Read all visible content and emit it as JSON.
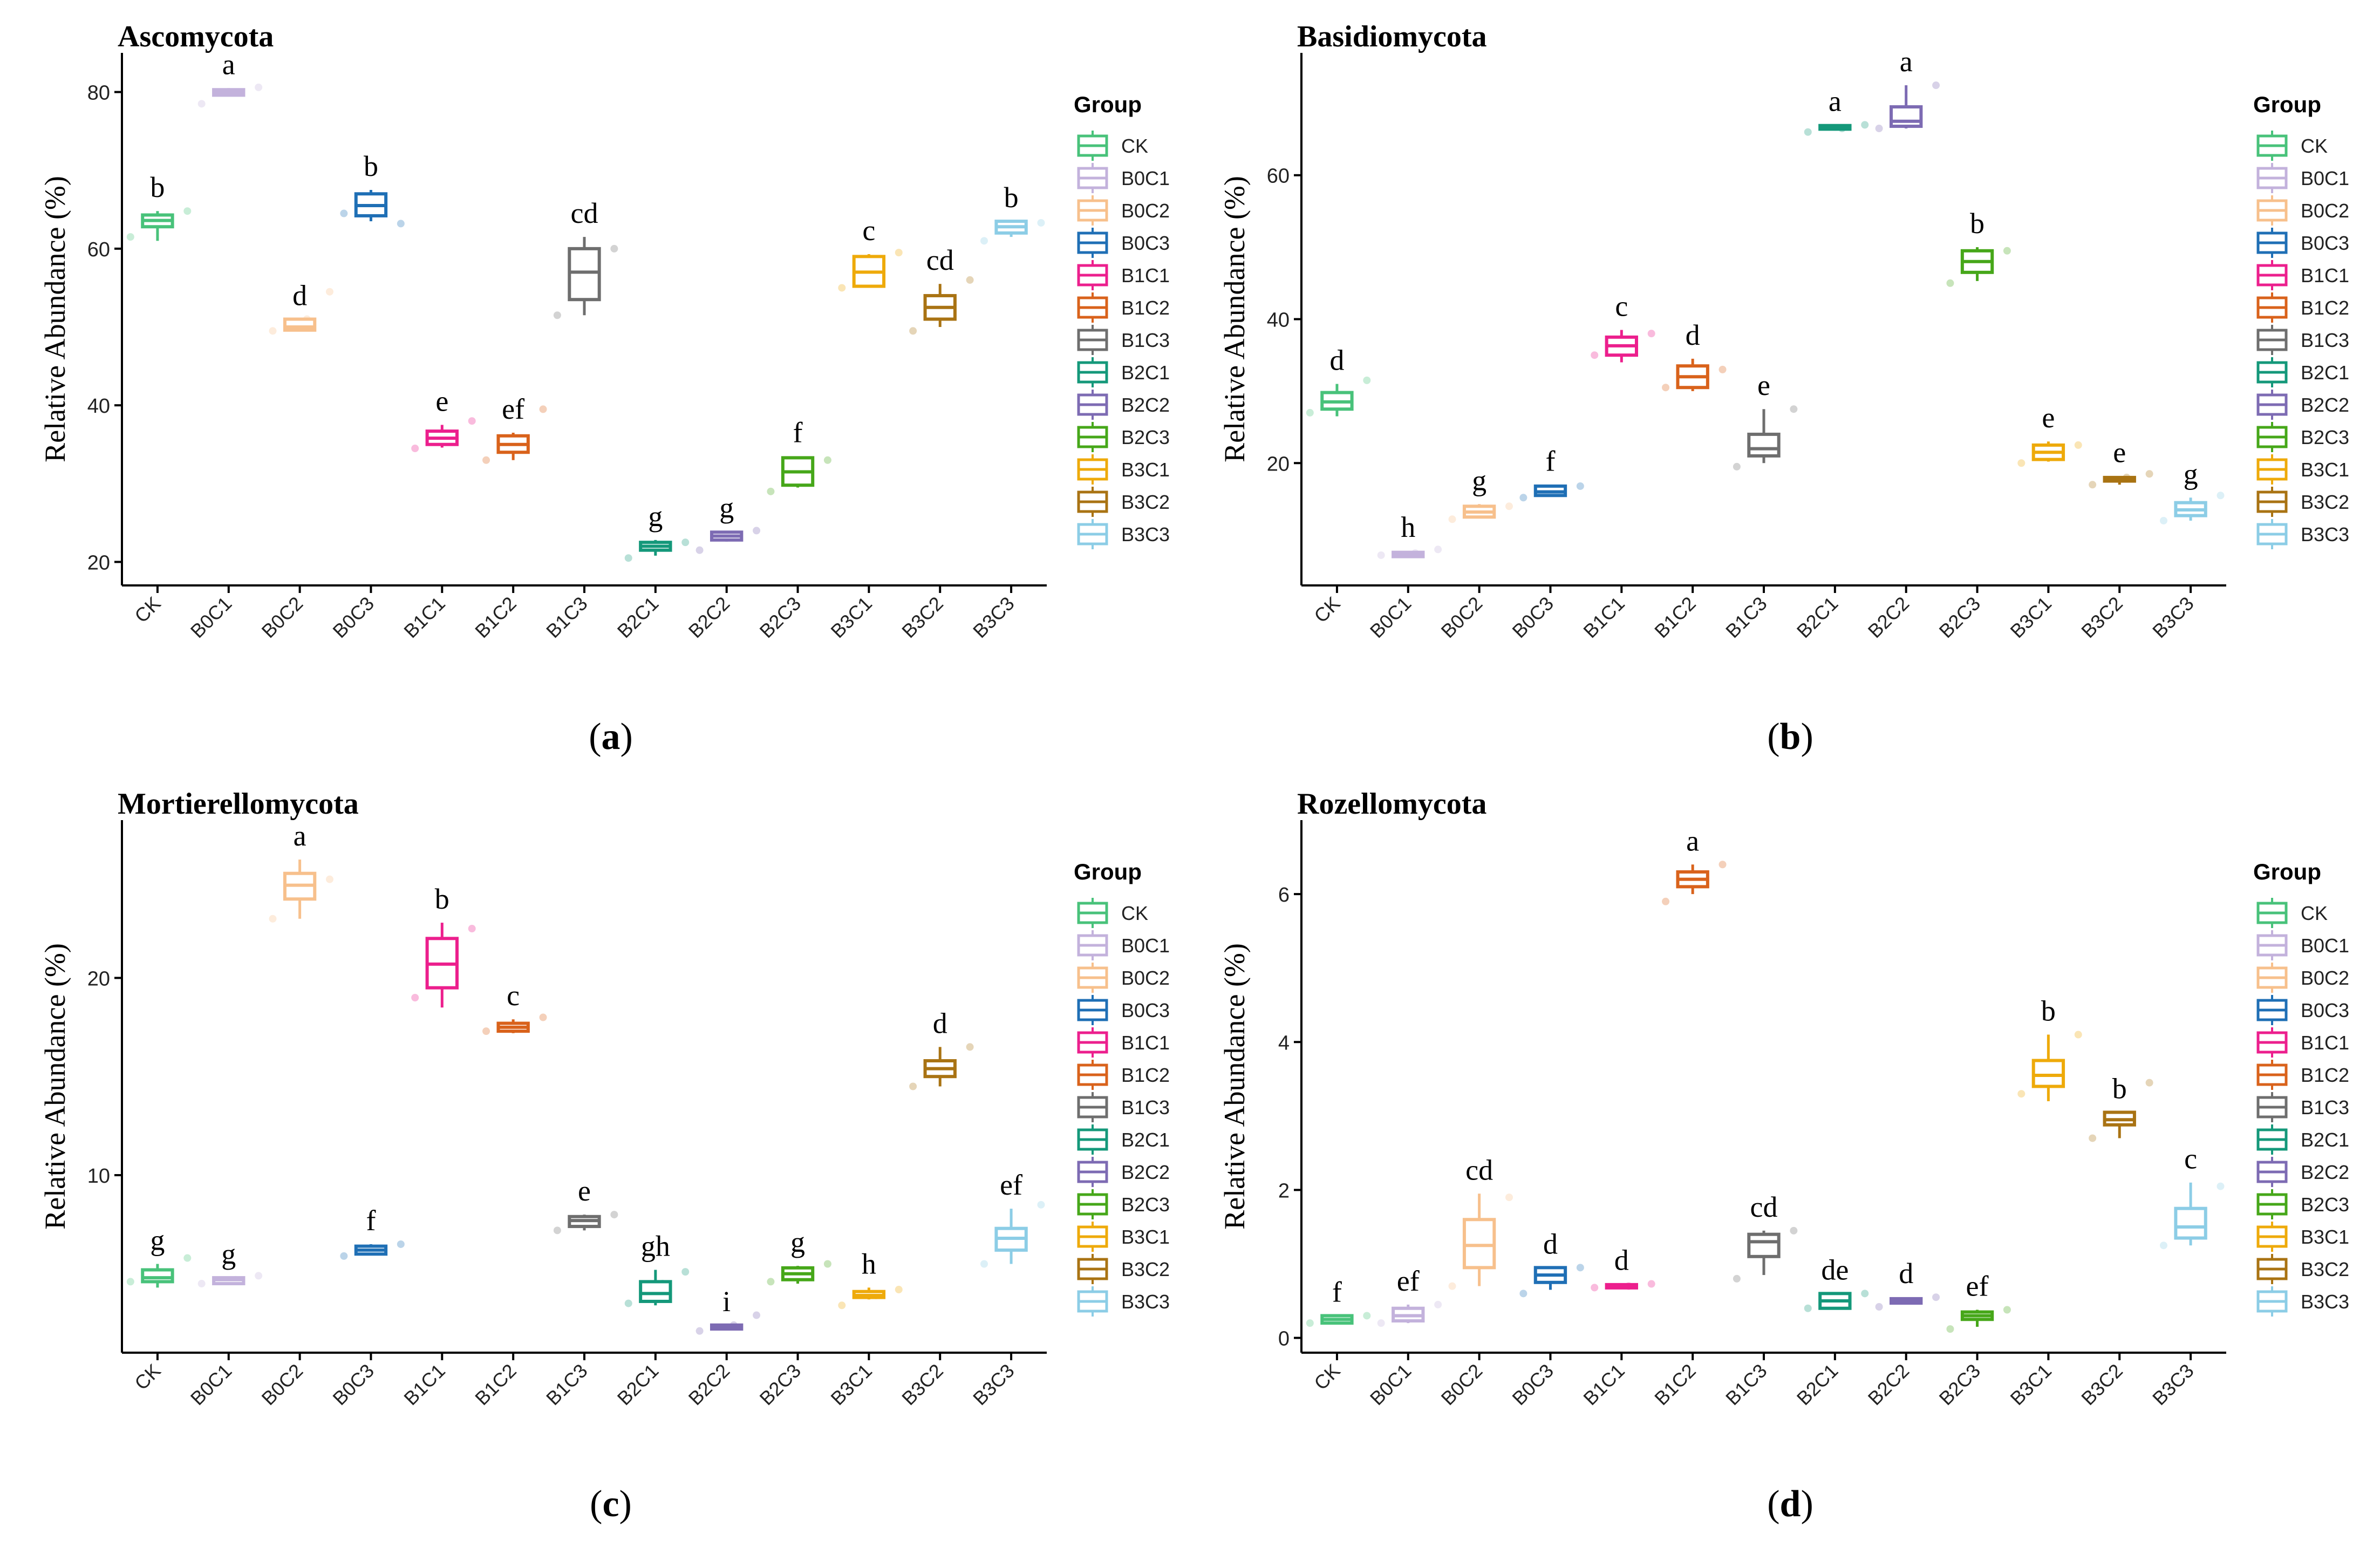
{
  "figure": {
    "panel_letters": [
      "(a)",
      "(b)",
      "(c)",
      "(d)"
    ]
  },
  "legend": {
    "title": "Group",
    "groups": [
      "CK",
      "B0C1",
      "B0C2",
      "B0C3",
      "B1C1",
      "B1C2",
      "B1C3",
      "B2C1",
      "B2C2",
      "B2C3",
      "B3C1",
      "B3C2",
      "B3C3"
    ],
    "colors": [
      "#48C27A",
      "#C3B2DC",
      "#F7C08C",
      "#1F6FB5",
      "#EC1F8D",
      "#D9621B",
      "#6E6E6E",
      "#14987A",
      "#7D6BB3",
      "#46A719",
      "#EEAA0A",
      "#A97313",
      "#8CCDE6"
    ]
  },
  "chart_data": [
    {
      "type": "box",
      "title": "Ascomycota",
      "panel": "(a)",
      "xlabel": "",
      "ylabel": "Relative Abundance (%)",
      "categories": [
        "CK",
        "B0C1",
        "B0C2",
        "B0C3",
        "B1C1",
        "B1C2",
        "B1C3",
        "B2C1",
        "B2C2",
        "B2C3",
        "B3C1",
        "B3C2",
        "B3C3"
      ],
      "yticks": [
        20,
        40,
        60,
        80
      ],
      "ylim": [
        17,
        85
      ],
      "boxes": [
        {
          "min": 61,
          "q1": 62.8,
          "median": 63.6,
          "q3": 64.3,
          "max": 64.8
        },
        {
          "min": 79.5,
          "q1": 79.6,
          "median": 80,
          "q3": 80.3,
          "max": 80.5
        },
        {
          "min": 49.5,
          "q1": 49.6,
          "median": 50,
          "q3": 51,
          "max": 51
        },
        {
          "min": 63.5,
          "q1": 64.2,
          "median": 65.5,
          "q3": 67,
          "max": 67.5
        },
        {
          "min": 34.6,
          "q1": 35,
          "median": 35.8,
          "q3": 36.7,
          "max": 37.5
        },
        {
          "min": 33,
          "q1": 34,
          "median": 35,
          "q3": 36.1,
          "max": 36.5
        },
        {
          "min": 51.5,
          "q1": 53.5,
          "median": 57,
          "q3": 60,
          "max": 61.5
        },
        {
          "min": 20.8,
          "q1": 21.5,
          "median": 22,
          "q3": 22.5,
          "max": 22.8
        },
        {
          "min": 22.6,
          "q1": 22.8,
          "median": 23.3,
          "q3": 23.8,
          "max": 23.9
        },
        {
          "min": 29.5,
          "q1": 29.8,
          "median": 31.5,
          "q3": 33.3,
          "max": 33.5
        },
        {
          "min": 55,
          "q1": 55.2,
          "median": 57,
          "q3": 59,
          "max": 59.3
        },
        {
          "min": 50,
          "q1": 51,
          "median": 52.5,
          "q3": 54,
          "max": 55.5
        },
        {
          "min": 61.5,
          "q1": 62,
          "median": 62.8,
          "q3": 63.5,
          "max": 63.5
        }
      ],
      "letters": [
        "b",
        "a",
        "d",
        "b",
        "e",
        "ef",
        "cd",
        "g",
        "g",
        "f",
        "c",
        "cd",
        "b"
      ],
      "points": [
        [
          61.5,
          63.5,
          64.8
        ],
        [
          78.5,
          80,
          80.6
        ],
        [
          49.5,
          51,
          54.5
        ],
        [
          64.5,
          66,
          63.2
        ],
        [
          34.5,
          36,
          38
        ],
        [
          33,
          35,
          39.5
        ],
        [
          51.5,
          57,
          60
        ],
        [
          20.5,
          22,
          22.5
        ],
        [
          21.5,
          23.5,
          24
        ],
        [
          29,
          31,
          33
        ],
        [
          55,
          58,
          59.5
        ],
        [
          49.5,
          53,
          56
        ],
        [
          61,
          62.5,
          63.3
        ]
      ]
    },
    {
      "type": "box",
      "title": "Basidiomycota",
      "panel": "(b)",
      "xlabel": "",
      "ylabel": "Relative Abundance (%)",
      "categories": [
        "CK",
        "B0C1",
        "B0C2",
        "B0C3",
        "B1C1",
        "B1C2",
        "B1C3",
        "B2C1",
        "B2C2",
        "B2C3",
        "B3C1",
        "B3C2",
        "B3C3"
      ],
      "yticks": [
        20,
        40,
        60
      ],
      "ylim": [
        3,
        77
      ],
      "boxes": [
        {
          "min": 26.5,
          "q1": 27.5,
          "median": 28.5,
          "q3": 29.8,
          "max": 31
        },
        {
          "min": 7,
          "q1": 7,
          "median": 7.3,
          "q3": 7.6,
          "max": 7.8
        },
        {
          "min": 12.3,
          "q1": 12.5,
          "median": 13.2,
          "q3": 14,
          "max": 14.3
        },
        {
          "min": 15.3,
          "q1": 15.5,
          "median": 16,
          "q3": 16.8,
          "max": 17
        },
        {
          "min": 34,
          "q1": 35,
          "median": 36.3,
          "q3": 37.5,
          "max": 38.5
        },
        {
          "min": 30,
          "q1": 30.5,
          "median": 32,
          "q3": 33.5,
          "max": 34.5
        },
        {
          "min": 20,
          "q1": 21,
          "median": 22,
          "q3": 24,
          "max": 27.5
        },
        {
          "min": 66.2,
          "q1": 66.4,
          "median": 66.7,
          "q3": 66.9,
          "max": 67
        },
        {
          "min": 66.5,
          "q1": 66.8,
          "median": 67.5,
          "q3": 69.5,
          "max": 72.5
        },
        {
          "min": 45.3,
          "q1": 46.5,
          "median": 48,
          "q3": 49.5,
          "max": 50
        },
        {
          "min": 20.2,
          "q1": 20.5,
          "median": 21.5,
          "q3": 22.5,
          "max": 23
        },
        {
          "min": 17,
          "q1": 17.5,
          "median": 17.8,
          "q3": 18,
          "max": 18.2
        },
        {
          "min": 12,
          "q1": 12.7,
          "median": 13.5,
          "q3": 14.5,
          "max": 15.2
        }
      ],
      "letters": [
        "d",
        "h",
        "g",
        "f",
        "c",
        "d",
        "e",
        "a",
        "a",
        "b",
        "e",
        "e",
        "g"
      ],
      "points": [
        [
          27,
          29,
          31.5
        ],
        [
          7.2,
          7.5,
          8
        ],
        [
          12.2,
          13.5,
          14
        ],
        [
          15.2,
          16.5,
          16.8
        ],
        [
          35,
          36.5,
          38
        ],
        [
          30.5,
          32,
          33
        ],
        [
          19.5,
          23,
          27.5
        ],
        [
          66,
          66.5,
          67
        ],
        [
          66.5,
          68,
          72.5
        ],
        [
          45,
          48,
          49.5
        ],
        [
          20,
          21.5,
          22.5
        ],
        [
          17,
          18,
          18.5
        ],
        [
          12,
          13.5,
          15.5
        ]
      ]
    },
    {
      "type": "box",
      "title": "Mortierellomycota",
      "panel": "(c)",
      "xlabel": "",
      "ylabel": "Relative Abundance (%)",
      "categories": [
        "CK",
        "B0C1",
        "B0C2",
        "B0C3",
        "B1C1",
        "B1C2",
        "B1C3",
        "B2C1",
        "B2C2",
        "B2C3",
        "B3C1",
        "B3C2",
        "B3C3"
      ],
      "yticks": [
        10,
        20
      ],
      "ylim": [
        1,
        28
      ],
      "boxes": [
        {
          "min": 4.3,
          "q1": 4.6,
          "median": 4.8,
          "q3": 5.2,
          "max": 5.5
        },
        {
          "min": 4.5,
          "q1": 4.5,
          "median": 4.7,
          "q3": 4.8,
          "max": 4.8
        },
        {
          "min": 23,
          "q1": 24,
          "median": 24.7,
          "q3": 25.3,
          "max": 26
        },
        {
          "min": 6,
          "q1": 6,
          "median": 6.2,
          "q3": 6.4,
          "max": 6.5
        },
        {
          "min": 18.5,
          "q1": 19.5,
          "median": 20.7,
          "q3": 22,
          "max": 22.8
        },
        {
          "min": 17.2,
          "q1": 17.3,
          "median": 17.5,
          "q3": 17.7,
          "max": 17.9
        },
        {
          "min": 7.2,
          "q1": 7.4,
          "median": 7.7,
          "q3": 7.9,
          "max": 8
        },
        {
          "min": 3.4,
          "q1": 3.6,
          "median": 4,
          "q3": 4.6,
          "max": 5.2
        },
        {
          "min": 2.2,
          "q1": 2.2,
          "median": 2.3,
          "q3": 2.4,
          "max": 2.4
        },
        {
          "min": 4.5,
          "q1": 4.7,
          "median": 5,
          "q3": 5.3,
          "max": 5.4
        },
        {
          "min": 3.7,
          "q1": 3.8,
          "median": 3.9,
          "q3": 4.1,
          "max": 4.3
        },
        {
          "min": 14.5,
          "q1": 15,
          "median": 15.4,
          "q3": 15.8,
          "max": 16.5
        },
        {
          "min": 5.5,
          "q1": 6.2,
          "median": 6.8,
          "q3": 7.3,
          "max": 8.3
        }
      ],
      "letters": [
        "g",
        "g",
        "a",
        "f",
        "b",
        "c",
        "e",
        "gh",
        "i",
        "g",
        "h",
        "d",
        "ef"
      ],
      "points": [
        [
          4.6,
          4.9,
          5.8
        ],
        [
          4.5,
          4.7,
          4.9
        ],
        [
          23,
          24.5,
          25
        ],
        [
          5.9,
          6.2,
          6.5
        ],
        [
          19,
          20,
          22.5
        ],
        [
          17.3,
          17.5,
          18
        ],
        [
          7.2,
          7.7,
          8
        ],
        [
          3.5,
          4.5,
          5.1
        ],
        [
          2.1,
          2.4,
          2.9
        ],
        [
          4.6,
          5.1,
          5.5
        ],
        [
          3.4,
          3.9,
          4.2
        ],
        [
          14.5,
          15.2,
          16.5
        ],
        [
          5.5,
          6.5,
          8.5
        ]
      ]
    },
    {
      "type": "box",
      "title": "Rozellomycota",
      "panel": "(d)",
      "xlabel": "",
      "ylabel": "Relative Abundance (%)",
      "categories": [
        "CK",
        "B0C1",
        "B0C2",
        "B0C3",
        "B1C1",
        "B1C2",
        "B1C3",
        "B2C1",
        "B2C2",
        "B2C3",
        "B3C1",
        "B3C2",
        "B3C3"
      ],
      "yticks": [
        0,
        2,
        4,
        6
      ],
      "ylim": [
        -0.2,
        7
      ],
      "boxes": [
        {
          "min": 0.2,
          "q1": 0.2,
          "median": 0.25,
          "q3": 0.3,
          "max": 0.3
        },
        {
          "min": 0.2,
          "q1": 0.23,
          "median": 0.3,
          "q3": 0.4,
          "max": 0.45
        },
        {
          "min": 0.7,
          "q1": 0.95,
          "median": 1.25,
          "q3": 1.6,
          "max": 1.95
        },
        {
          "min": 0.65,
          "q1": 0.75,
          "median": 0.85,
          "q3": 0.95,
          "max": 0.95
        },
        {
          "min": 0.66,
          "q1": 0.68,
          "median": 0.7,
          "q3": 0.72,
          "max": 0.73
        },
        {
          "min": 6,
          "q1": 6.1,
          "median": 6.2,
          "q3": 6.3,
          "max": 6.4
        },
        {
          "min": 0.85,
          "q1": 1.1,
          "median": 1.3,
          "q3": 1.4,
          "max": 1.45
        },
        {
          "min": 0.4,
          "q1": 0.4,
          "median": 0.5,
          "q3": 0.6,
          "max": 0.6
        },
        {
          "min": 0.45,
          "q1": 0.47,
          "median": 0.5,
          "q3": 0.53,
          "max": 0.55
        },
        {
          "min": 0.15,
          "q1": 0.25,
          "median": 0.3,
          "q3": 0.35,
          "max": 0.38
        },
        {
          "min": 3.2,
          "q1": 3.4,
          "median": 3.55,
          "q3": 3.75,
          "max": 4.1
        },
        {
          "min": 2.7,
          "q1": 2.88,
          "median": 2.95,
          "q3": 3.05,
          "max": 3.05
        },
        {
          "min": 1.25,
          "q1": 1.35,
          "median": 1.5,
          "q3": 1.75,
          "max": 2.1
        }
      ],
      "letters": [
        "f",
        "ef",
        "cd",
        "d",
        "d",
        "a",
        "cd",
        "de",
        "d",
        "ef",
        "b",
        "b",
        "c"
      ],
      "points": [
        [
          0.2,
          0.25,
          0.3
        ],
        [
          0.2,
          0.3,
          0.45
        ],
        [
          0.7,
          1.2,
          1.9
        ],
        [
          0.6,
          0.85,
          0.95
        ],
        [
          0.68,
          0.7,
          0.73
        ],
        [
          5.9,
          6.2,
          6.4
        ],
        [
          0.8,
          1.2,
          1.45
        ],
        [
          0.4,
          0.5,
          0.6
        ],
        [
          0.42,
          0.5,
          0.55
        ],
        [
          0.12,
          0.3,
          0.38
        ],
        [
          3.3,
          3.6,
          4.1
        ],
        [
          2.7,
          2.95,
          3.45
        ],
        [
          1.25,
          1.45,
          2.05
        ]
      ]
    }
  ]
}
